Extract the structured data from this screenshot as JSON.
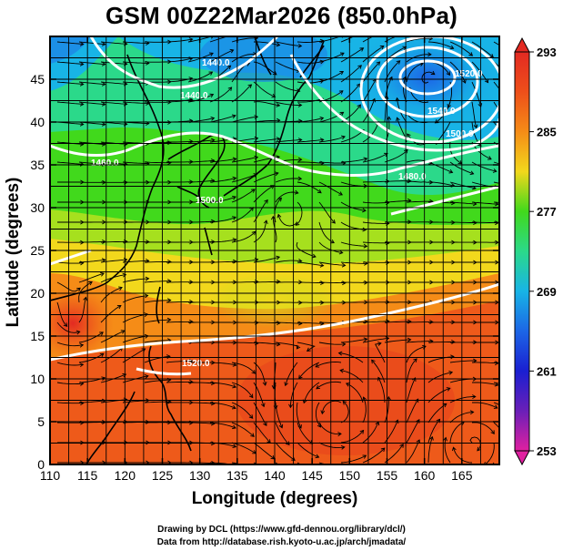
{
  "title": "GSM 00Z22Mar2026 (850.0hPa)",
  "xaxis": {
    "label": "Longitude (degrees)",
    "ticks": [
      "110",
      "115",
      "120",
      "125",
      "130",
      "135",
      "140",
      "145",
      "150",
      "155",
      "160",
      "165"
    ],
    "range": [
      110,
      170
    ]
  },
  "yaxis": {
    "label": "Latitude  (degrees)",
    "ticks": [
      "0",
      "5",
      "10",
      "15",
      "20",
      "25",
      "30",
      "35",
      "40",
      "45"
    ],
    "range": [
      0,
      50
    ]
  },
  "colorbar": {
    "ticks": [
      "293",
      "285",
      "277",
      "269",
      "261",
      "253"
    ],
    "range": [
      253,
      293
    ],
    "colors": [
      "#e0209a",
      "#6a1fb8",
      "#1a1fd1",
      "#1c66e6",
      "#18b4e6",
      "#2bd98a",
      "#41d91c",
      "#a6e01e",
      "#f2d81c",
      "#f58c17",
      "#ee4f1a",
      "#e32a22"
    ]
  },
  "contour_labels": [
    "1440.0",
    "1460.0",
    "1480.0",
    "1500.0",
    "1520.0",
    "1540.0",
    "1500.0",
    "1520.0",
    "1440.0"
  ],
  "credits": [
    "Drawing by DCL (https://www.gfd-dennou.org/library/dcl/)",
    "Data from http://database.rish.kyoto-u.ac.jp/arch/jmadata/"
  ],
  "colors": {
    "frame": "#000000",
    "contour": "#ffffff",
    "grid": "#000000"
  }
}
